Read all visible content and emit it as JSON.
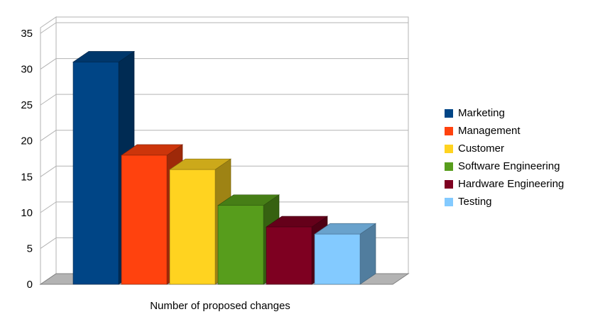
{
  "chart_data": {
    "type": "bar",
    "projection": "3d",
    "title": "",
    "xlabel": "Number of proposed changes",
    "ylabel": "",
    "ylim": [
      0,
      35
    ],
    "yticks": [
      0,
      5,
      10,
      15,
      20,
      25,
      30,
      35
    ],
    "grid": true,
    "legend_position": "right",
    "categories": [
      "Marketing",
      "Management",
      "Customer",
      "Software Engineering",
      "Hardware Engineering",
      "Testing"
    ],
    "values": [
      31,
      18,
      16,
      11,
      8,
      7
    ],
    "colors": [
      "#004586",
      "#ff420e",
      "#ffd320",
      "#579d1c",
      "#7e0021",
      "#83caff"
    ]
  },
  "style_colors": {
    "background": "#ffffff",
    "wall": "#ffffff",
    "wall_border": "#b3b3b3",
    "gridline": "#b3b3b3",
    "floor": "#b3b3b3",
    "floor_border": "#808080",
    "text": "#000000"
  }
}
